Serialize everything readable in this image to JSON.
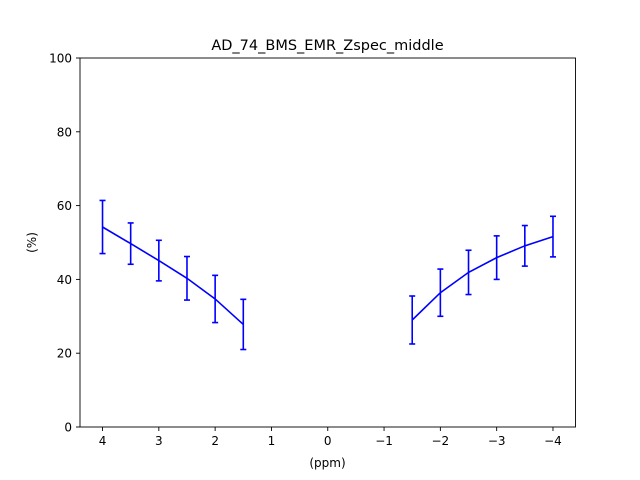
{
  "chart_data": {
    "type": "line",
    "title": "AD_74_BMS_EMR_Zspec_middle",
    "xlabel": "(ppm)",
    "ylabel": "(%)",
    "xlim": [
      4.4,
      -4.4
    ],
    "ylim": [
      0,
      100
    ],
    "x_reversed": true,
    "xticks": [
      4,
      3,
      2,
      1,
      0,
      -1,
      -2,
      -3,
      -4
    ],
    "xtick_labels": [
      "4",
      "3",
      "2",
      "1",
      "0",
      "−1",
      "−2",
      "−3",
      "−4"
    ],
    "yticks": [
      0,
      20,
      40,
      60,
      80,
      100
    ],
    "ytick_labels": [
      "0",
      "20",
      "40",
      "60",
      "80",
      "100"
    ],
    "grid": false,
    "color": "#0000ff",
    "series": [
      {
        "segment": "positive-offsets",
        "x": [
          4,
          3.5,
          3,
          2.5,
          2,
          1.5
        ],
        "y": [
          54.2,
          49.7,
          45.1,
          40.3,
          34.7,
          27.8
        ],
        "yerr": [
          7.2,
          5.6,
          5.5,
          5.9,
          6.4,
          6.8
        ]
      },
      {
        "segment": "negative-offsets",
        "x": [
          -1.5,
          -2,
          -2.5,
          -3,
          -3.5,
          -4
        ],
        "y": [
          29.0,
          36.4,
          41.9,
          45.9,
          49.1,
          51.6
        ],
        "yerr": [
          6.5,
          6.4,
          6.0,
          5.9,
          5.5,
          5.5
        ]
      }
    ]
  }
}
